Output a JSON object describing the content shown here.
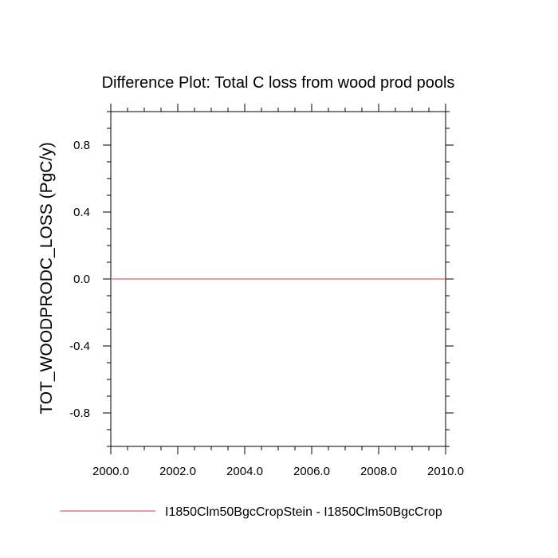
{
  "chart_data": {
    "type": "line",
    "title": "Difference Plot: Total C loss from wood prod pools",
    "xlabel": "",
    "ylabel": "TOT_WOODPRODC_LOSS  (PgC/y)",
    "xlim": [
      2000.0,
      2010.0
    ],
    "ylim": [
      -1.0,
      1.0
    ],
    "x_ticks": [
      2000.0,
      2002.0,
      2004.0,
      2006.0,
      2008.0,
      2010.0
    ],
    "x_tick_labels": [
      "2000.0",
      "2002.0",
      "2004.0",
      "2006.0",
      "2008.0",
      "2010.0"
    ],
    "y_ticks": [
      -0.8,
      -0.4,
      0.0,
      0.4,
      0.8
    ],
    "y_tick_labels": [
      "-0.8",
      "-0.4",
      "0.0",
      "0.4",
      "0.8"
    ],
    "grid": false,
    "legend_position": "bottom",
    "series": [
      {
        "name": "I1850Clm50BgcCropStein - I1850Clm50BgcCrop",
        "color": "#e06666",
        "x": [
          2000,
          2001,
          2002,
          2003,
          2004,
          2005,
          2006,
          2007,
          2008,
          2009,
          2010
        ],
        "y": [
          0,
          0,
          0,
          0,
          0,
          0,
          0,
          0,
          0,
          0,
          0
        ]
      }
    ]
  }
}
